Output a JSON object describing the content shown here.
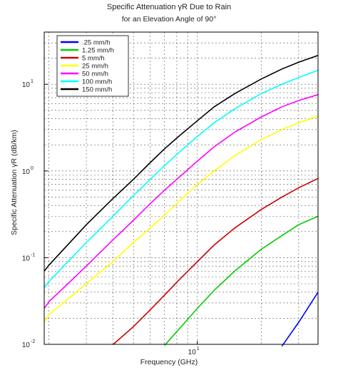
{
  "chart_data": {
    "type": "line",
    "title": "Specific Attenuation γR Due to Rain",
    "subtitle": "for an Elevation Angle of 90°",
    "xlabel": "Frequency (GHz)",
    "ylabel": "Specific Attenuation γR (dB/km)",
    "x_scale": "log",
    "y_scale": "log",
    "xlim": [
      1.9,
      37
    ],
    "ylim": [
      0.01,
      40
    ],
    "grid": true,
    "legend_position": "top-left",
    "x_ticks": [
      {
        "value": 10,
        "label": "10",
        "sup": "1"
      }
    ],
    "y_ticks": [
      {
        "value": 0.01,
        "label": "10",
        "sup": "-2"
      },
      {
        "value": 0.1,
        "label": "10",
        "sup": "-1"
      },
      {
        "value": 1,
        "label": "10",
        "sup": "0"
      },
      {
        "value": 10,
        "label": "10",
        "sup": "1"
      }
    ],
    "x": [
      1.9,
      2,
      3,
      4,
      5,
      6,
      7,
      8,
      10,
      12,
      15,
      20,
      25,
      30,
      37
    ],
    "series": [
      {
        "name": ".25 mm/h",
        "color": "#0000ff",
        "values": [
          null,
          null,
          null,
          null,
          null,
          null,
          null,
          null,
          null,
          null,
          null,
          null,
          0.0095,
          0.018,
          0.04
        ]
      },
      {
        "name": "1.25 mm/h",
        "color": "#00cc00",
        "values": [
          null,
          null,
          null,
          null,
          null,
          null,
          0.0097,
          0.014,
          0.026,
          0.042,
          0.07,
          0.125,
          0.18,
          0.24,
          0.3
        ]
      },
      {
        "name": "5 mm/h",
        "color": "#cc0000",
        "values": [
          null,
          null,
          null,
          0.0099,
          0.016,
          0.025,
          0.037,
          0.052,
          0.09,
          0.14,
          0.22,
          0.36,
          0.5,
          0.64,
          0.82
        ]
      },
      {
        "name": "25 mm/h",
        "color": "#ffff00",
        "values": [
          0.018,
          0.022,
          0.05,
          0.09,
          0.15,
          0.22,
          0.31,
          0.42,
          0.7,
          1.0,
          1.5,
          2.3,
          3.0,
          3.6,
          4.3
        ]
      },
      {
        "name": "50 mm/h",
        "color": "#ff00ff",
        "values": [
          0.026,
          0.031,
          0.08,
          0.16,
          0.27,
          0.42,
          0.6,
          0.8,
          1.3,
          1.9,
          2.8,
          4.2,
          5.5,
          6.5,
          7.6
        ]
      },
      {
        "name": "100 mm/h",
        "color": "#00ffff",
        "values": [
          0.045,
          0.053,
          0.15,
          0.3,
          0.52,
          0.8,
          1.15,
          1.55,
          2.5,
          3.6,
          5.2,
          7.8,
          10.0,
          12.0,
          14.5
        ]
      },
      {
        "name": "150 mm/h",
        "color": "#000000",
        "values": [
          0.07,
          0.082,
          0.24,
          0.48,
          0.8,
          1.25,
          1.8,
          2.4,
          3.8,
          5.5,
          7.8,
          11.5,
          15.0,
          18.0,
          21.5
        ]
      }
    ]
  }
}
